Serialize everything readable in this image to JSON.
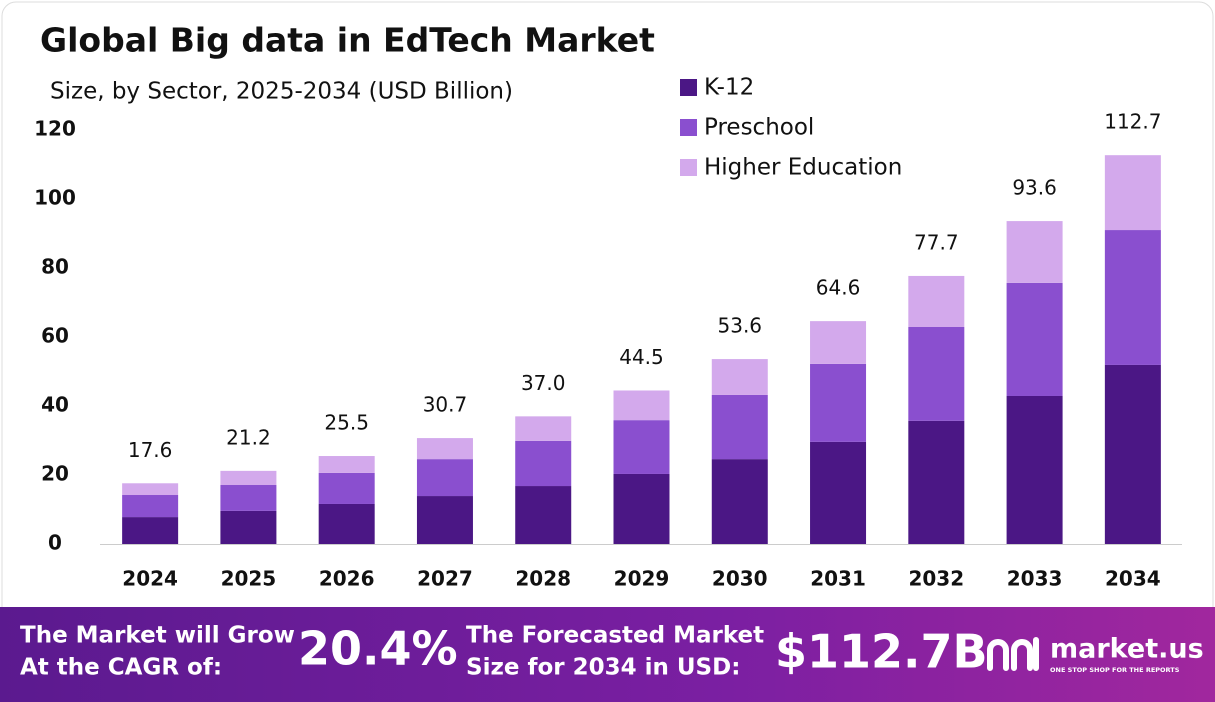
{
  "chart_data": {
    "type": "bar",
    "stacked": true,
    "title": "Global Big data in EdTech Market",
    "subtitle": "Size, by Sector, 2025-2034 (USD Billion)",
    "categories": [
      "2024",
      "2025",
      "2026",
      "2027",
      "2028",
      "2029",
      "2030",
      "2031",
      "2032",
      "2033",
      "2034"
    ],
    "series": [
      {
        "name": "K-12",
        "color": "#4b1785",
        "values": [
          7.8,
          9.6,
          11.6,
          13.9,
          16.8,
          20.3,
          24.6,
          29.6,
          35.7,
          42.9,
          51.9
        ]
      },
      {
        "name": "Preschool",
        "color": "#8a4fcf",
        "values": [
          6.4,
          7.5,
          9.0,
          10.7,
          13.1,
          15.6,
          18.6,
          22.6,
          27.2,
          32.8,
          39.1
        ]
      },
      {
        "name": "Higher Education",
        "color": "#d3a9ec",
        "values": [
          3.4,
          4.1,
          4.9,
          6.1,
          7.1,
          8.6,
          10.4,
          12.4,
          14.8,
          17.9,
          21.7
        ]
      }
    ],
    "totals": {
      "values": [
        17.6,
        21.2,
        25.5,
        30.7,
        37.0,
        44.5,
        53.6,
        64.6,
        77.7,
        93.6,
        112.7
      ],
      "value_labels": [
        "17.6",
        "21.2",
        "25.5",
        "30.7",
        "37.0",
        "44.5",
        "53.6",
        "64.6",
        "77.7",
        "93.6",
        "112.7"
      ]
    },
    "ylim": [
      0,
      120
    ],
    "yticks": [
      0,
      20,
      40,
      60,
      80,
      100,
      120
    ],
    "grid": false,
    "legend": "top-right"
  },
  "footer": {
    "cagr_text": [
      "The Market will Grow",
      "At the CAGR of:"
    ],
    "cagr_value": "20.4%",
    "forecast_text": [
      "The Forecasted Market",
      "Size for 2034 in USD:"
    ],
    "forecast_value": "$112.7B",
    "brand": "market.us",
    "tagline": "ONE STOP SHOP FOR THE REPORTS"
  }
}
